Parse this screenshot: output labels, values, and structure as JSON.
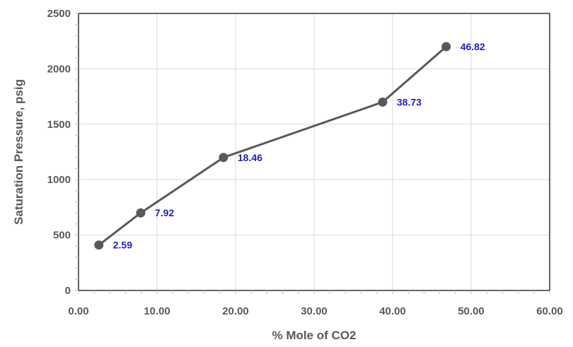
{
  "chart_data": {
    "type": "line",
    "title": "",
    "xlabel": "% Mole of CO2",
    "ylabel": "Saturation Pressure, psig",
    "xlim": [
      0,
      60
    ],
    "ylim": [
      0,
      2500
    ],
    "x_ticks": [
      "0.00",
      "10.00",
      "20.00",
      "30.00",
      "40.00",
      "50.00",
      "60.00"
    ],
    "y_ticks": [
      "0",
      "500",
      "1000",
      "1500",
      "2000",
      "2500"
    ],
    "grid": true,
    "legend": "none",
    "series": [
      {
        "x": [
          2.59,
          7.92,
          18.46,
          38.73,
          46.82
        ],
        "y": [
          410,
          700,
          1200,
          1700,
          2200
        ],
        "labels": [
          "2.59",
          "7.92",
          "18.46",
          "38.73",
          "46.82"
        ],
        "color": "#595959",
        "label_color": "#1f1fbf"
      }
    ]
  }
}
